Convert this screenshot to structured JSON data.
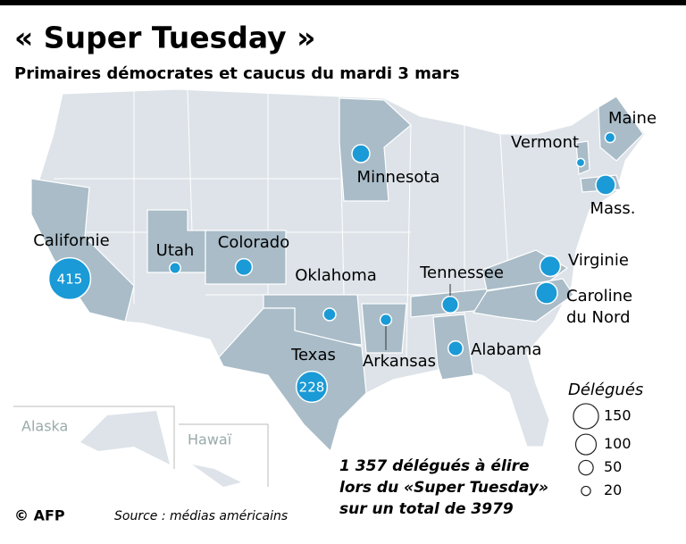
{
  "header": {
    "title": "« Super Tuesday »",
    "subtitle": "Primaires démocrates et caucus du mardi 3 mars"
  },
  "states": [
    {
      "name": "Californie",
      "delegates": 415
    },
    {
      "name": "Utah",
      "delegates": 29
    },
    {
      "name": "Colorado",
      "delegates": 67
    },
    {
      "name": "Oklahoma",
      "delegates": 37
    },
    {
      "name": "Texas",
      "delegates": 228
    },
    {
      "name": "Arkansas",
      "delegates": 31
    },
    {
      "name": "Minnesota",
      "delegates": 75
    },
    {
      "name": "Tennessee",
      "delegates": 64
    },
    {
      "name": "Alabama",
      "delegates": 52
    },
    {
      "name": "Virginie",
      "delegates": 99
    },
    {
      "name": "Caroline du Nord",
      "delegates": 110
    },
    {
      "name": "Vermont",
      "delegates": 16
    },
    {
      "name": "Maine",
      "delegates": 24
    },
    {
      "name": "Mass.",
      "delegates": 91
    }
  ],
  "insets": [
    "Alaska",
    "Hawaï"
  ],
  "legend": {
    "title": "Délégués",
    "sizes": [
      150,
      100,
      50,
      20
    ]
  },
  "note": [
    "1 357 délégués à élire",
    "lors du «Super Tuesday»",
    "sur un total de 3979"
  ],
  "credit": "© AFP",
  "source": "Source : médias américains"
}
